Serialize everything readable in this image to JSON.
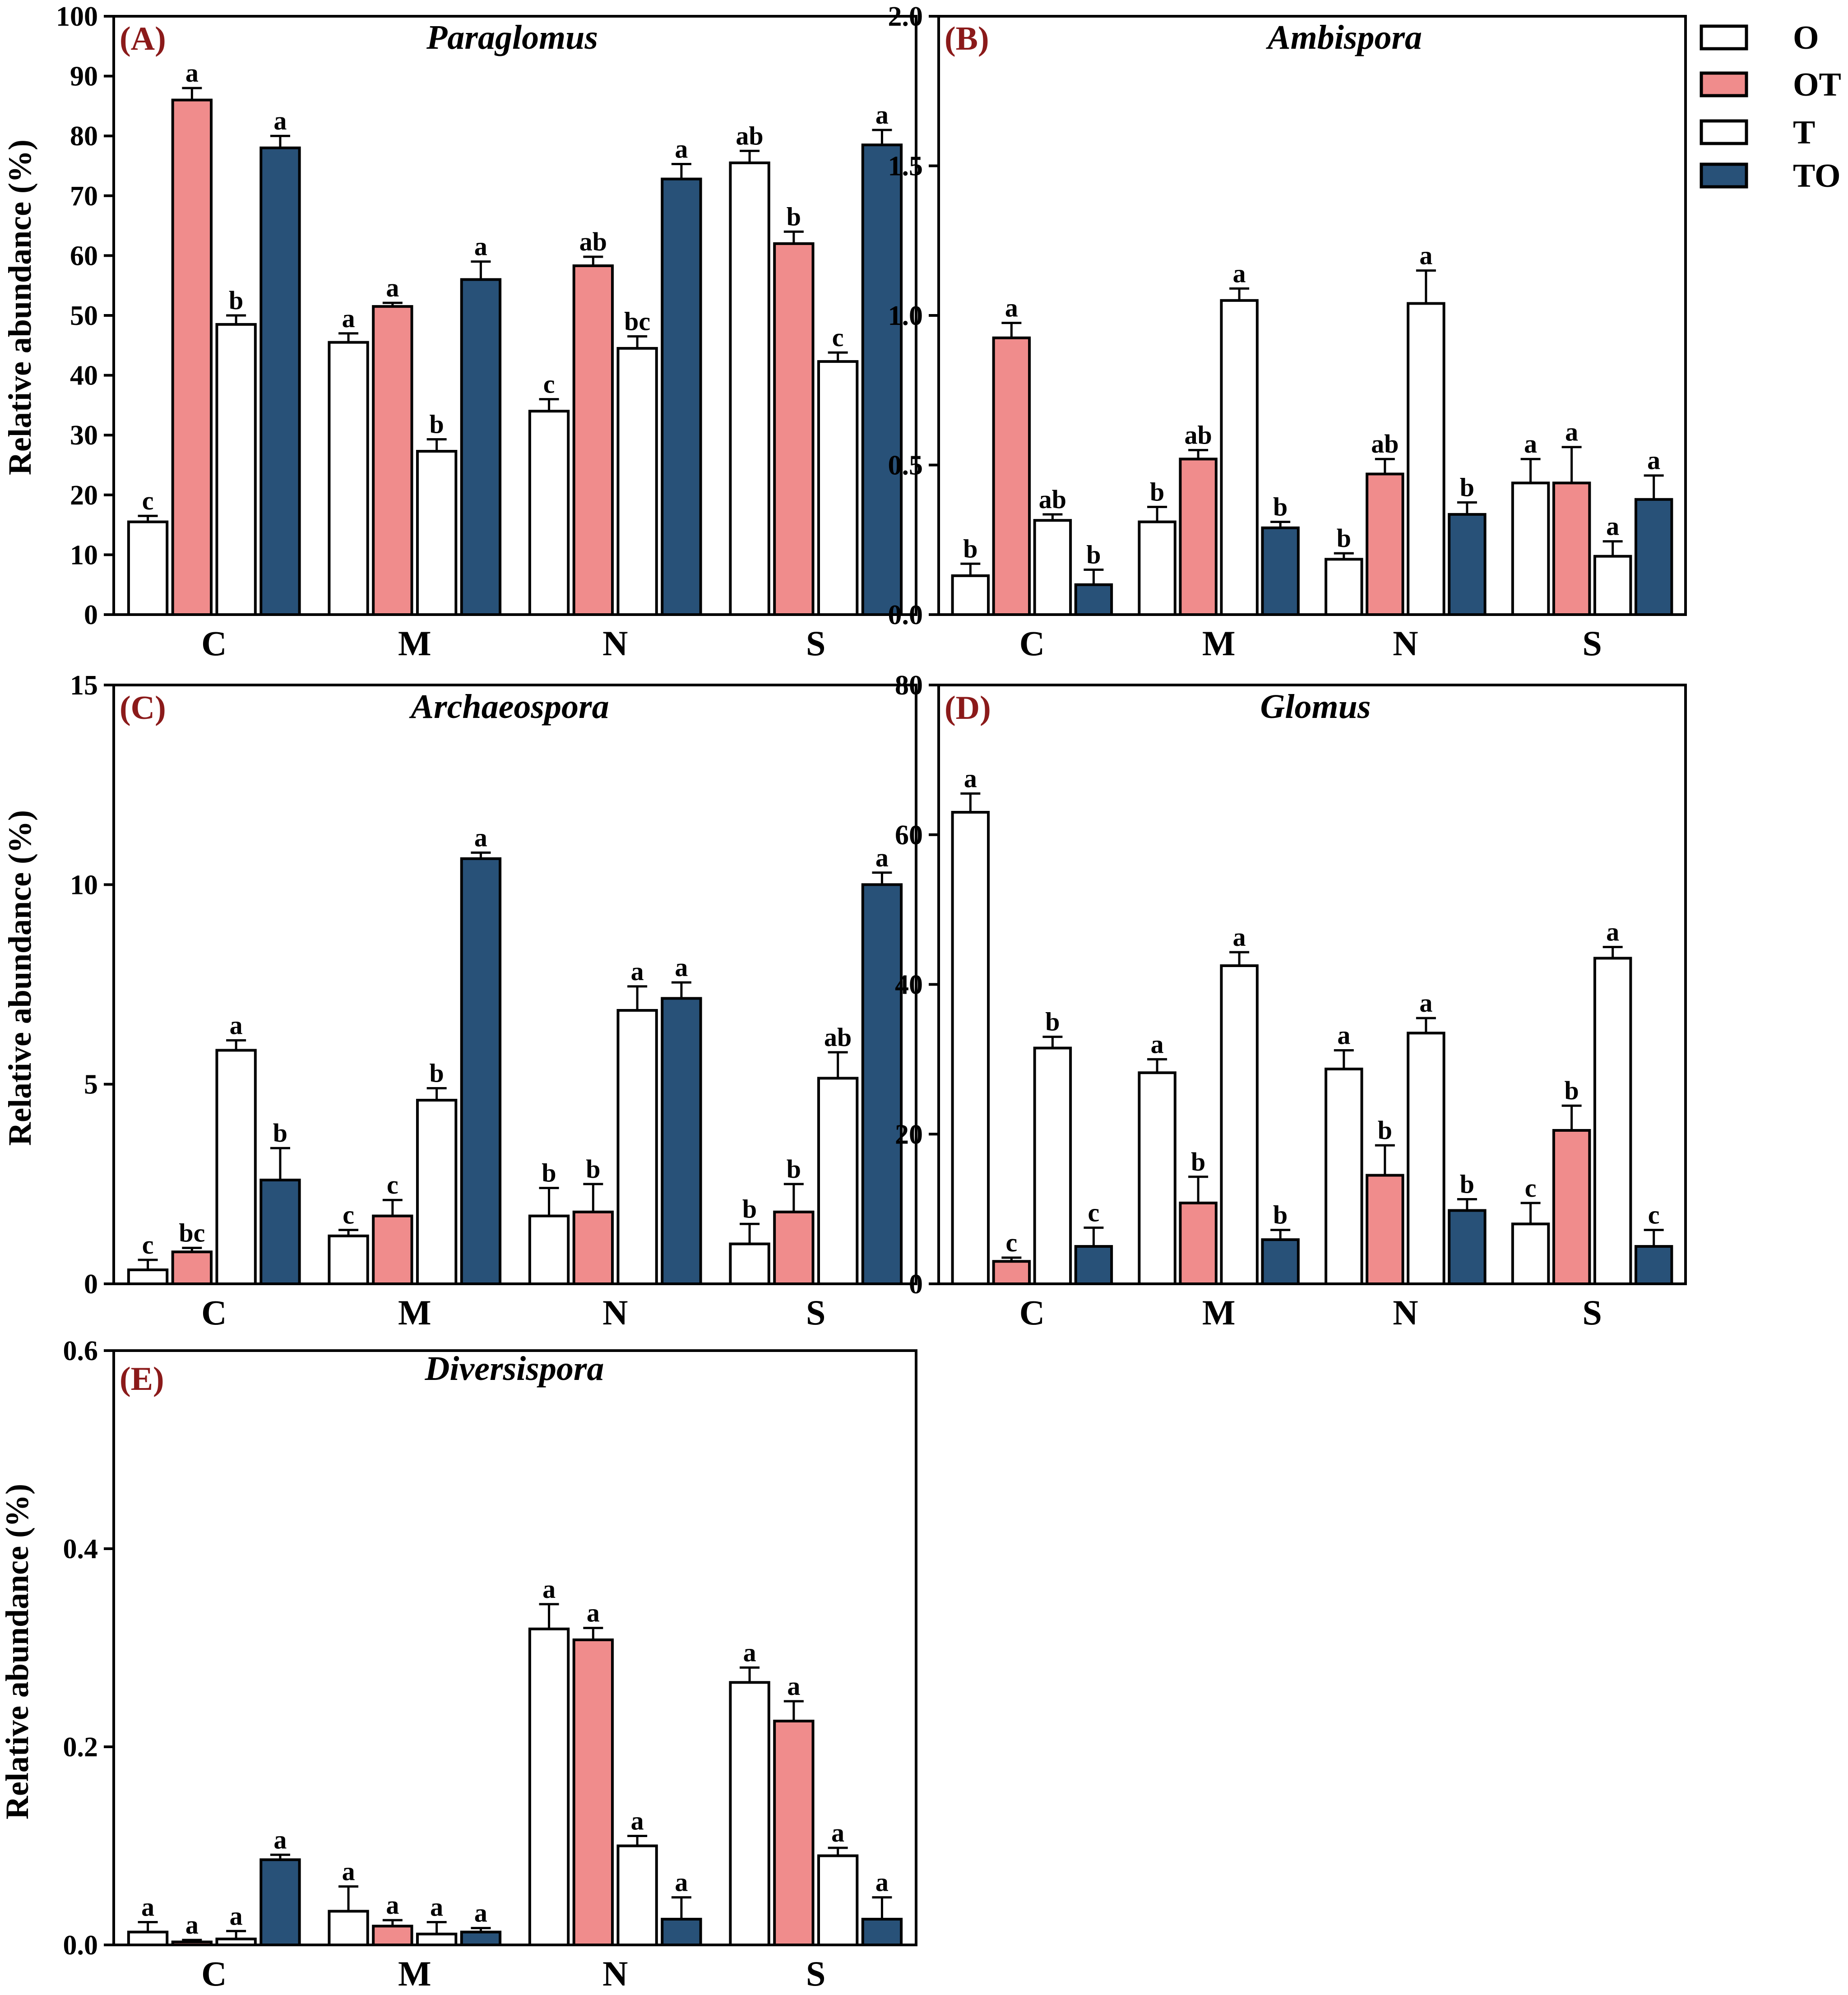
{
  "legend": {
    "entries": [
      {
        "name": "O",
        "color": "#ffffff"
      },
      {
        "name": "OT",
        "color": "#f08c8c"
      },
      {
        "name": "T",
        "color": "#ffffff"
      },
      {
        "name": "TO",
        "color": "#285178"
      }
    ]
  },
  "chart_data": [
    {
      "type": "bar",
      "panel_label": "(A)",
      "title": "Paraglomus",
      "ylabel": "Relative abundance (%)",
      "ylim": [
        0,
        100
      ],
      "yticks": [
        0,
        10,
        20,
        30,
        40,
        50,
        60,
        70,
        80,
        90,
        100
      ],
      "ytick_labels": [
        "0",
        "10",
        "20",
        "30",
        "40",
        "50",
        "60",
        "70",
        "80",
        "90",
        "100"
      ],
      "categories": [
        "C",
        "M",
        "N",
        "S"
      ],
      "series": [
        {
          "name": "O",
          "values": [
            15.5,
            45.5,
            34,
            75.5
          ],
          "errors": [
            1,
            1.5,
            2,
            2
          ],
          "letters": [
            "c",
            "a",
            "c",
            "ab"
          ]
        },
        {
          "name": "OT",
          "values": [
            86,
            51.5,
            58.3,
            62
          ],
          "errors": [
            2,
            0.6,
            1.5,
            2
          ],
          "letters": [
            "a",
            "a",
            "ab",
            "b"
          ]
        },
        {
          "name": "T",
          "values": [
            48.5,
            27.3,
            44.5,
            42.3
          ],
          "errors": [
            1.5,
            2,
            2,
            1.5
          ],
          "letters": [
            "b",
            "b",
            "bc",
            "c"
          ]
        },
        {
          "name": "TO",
          "values": [
            78,
            56,
            72.8,
            78.5
          ],
          "errors": [
            2,
            3,
            2.5,
            2.5
          ],
          "letters": [
            "a",
            "a",
            "a",
            "a"
          ]
        }
      ]
    },
    {
      "type": "bar",
      "panel_label": "(B)",
      "title": "Ambispora",
      "ylabel": "",
      "ylim": [
        0,
        2.0
      ],
      "yticks": [
        0,
        0.5,
        1.0,
        1.5,
        2.0
      ],
      "ytick_labels": [
        "0.0",
        "0.5",
        "1.0",
        "1.5",
        "2.0"
      ],
      "categories": [
        "C",
        "M",
        "N",
        "S"
      ],
      "series": [
        {
          "name": "O",
          "values": [
            0.13,
            0.31,
            0.185,
            0.44
          ],
          "errors": [
            0.04,
            0.05,
            0.02,
            0.08
          ],
          "letters": [
            "b",
            "b",
            "b",
            "a"
          ]
        },
        {
          "name": "OT",
          "values": [
            0.925,
            0.52,
            0.47,
            0.44
          ],
          "errors": [
            0.05,
            0.03,
            0.05,
            0.12
          ],
          "letters": [
            "a",
            "ab",
            "ab",
            "a"
          ]
        },
        {
          "name": "T",
          "values": [
            0.315,
            1.05,
            1.04,
            0.195
          ],
          "errors": [
            0.02,
            0.04,
            0.11,
            0.05
          ],
          "letters": [
            "ab",
            "a",
            "a",
            "a"
          ]
        },
        {
          "name": "TO",
          "values": [
            0.1,
            0.29,
            0.335,
            0.385
          ],
          "errors": [
            0.05,
            0.02,
            0.04,
            0.08
          ],
          "letters": [
            "b",
            "b",
            "b",
            "a"
          ]
        }
      ]
    },
    {
      "type": "bar",
      "panel_label": "(C)",
      "title": "Archaeospora",
      "ylabel": "Relative abundance (%)",
      "ylim": [
        0,
        15
      ],
      "yticks": [
        0,
        5,
        10,
        15
      ],
      "ytick_labels": [
        "0",
        "5",
        "10",
        "15"
      ],
      "categories": [
        "C",
        "M",
        "N",
        "S"
      ],
      "series": [
        {
          "name": "O",
          "values": [
            0.35,
            1.2,
            1.7,
            1.0
          ],
          "errors": [
            0.25,
            0.15,
            0.7,
            0.5
          ],
          "letters": [
            "c",
            "c",
            "b",
            "b"
          ]
        },
        {
          "name": "OT",
          "values": [
            0.8,
            1.7,
            1.8,
            1.8
          ],
          "errors": [
            0.1,
            0.4,
            0.7,
            0.7
          ],
          "letters": [
            "bc",
            "c",
            "b",
            "b"
          ]
        },
        {
          "name": "T",
          "values": [
            5.85,
            4.6,
            6.85,
            5.15
          ],
          "errors": [
            0.25,
            0.3,
            0.6,
            0.65
          ],
          "letters": [
            "a",
            "b",
            "a",
            "ab"
          ]
        },
        {
          "name": "TO",
          "values": [
            2.6,
            10.65,
            7.15,
            10.0
          ],
          "errors": [
            0.8,
            0.15,
            0.4,
            0.3
          ],
          "letters": [
            "b",
            "a",
            "a",
            "a"
          ]
        }
      ]
    },
    {
      "type": "bar",
      "panel_label": "(D)",
      "title": "Glomus",
      "ylabel": "",
      "ylim": [
        0,
        80
      ],
      "yticks": [
        0,
        20,
        40,
        60,
        80
      ],
      "ytick_labels": [
        "0",
        "20",
        "40",
        "60",
        "80"
      ],
      "categories": [
        "C",
        "M",
        "N",
        "S"
      ],
      "series": [
        {
          "name": "O",
          "values": [
            63,
            28.2,
            28.7,
            8.0
          ],
          "errors": [
            2.5,
            1.8,
            2.5,
            2.8
          ],
          "letters": [
            "a",
            "a",
            "a",
            "c"
          ]
        },
        {
          "name": "OT",
          "values": [
            3.0,
            10.8,
            14.5,
            20.5
          ],
          "errors": [
            0.5,
            3.5,
            4,
            3.3
          ],
          "letters": [
            "c",
            "b",
            "b",
            "b"
          ]
        },
        {
          "name": "T",
          "values": [
            31.5,
            42.5,
            33.5,
            43.5
          ],
          "errors": [
            1.5,
            1.8,
            2,
            1.5
          ],
          "letters": [
            "b",
            "a",
            "a",
            "a"
          ]
        },
        {
          "name": "TO",
          "values": [
            5.0,
            5.9,
            9.8,
            5.0
          ],
          "errors": [
            2.5,
            1.3,
            1.5,
            2.2
          ],
          "letters": [
            "c",
            "b",
            "b",
            "c"
          ]
        }
      ]
    },
    {
      "type": "bar",
      "panel_label": "(E)",
      "title": "Diversispora",
      "ylabel": "Relative abundance (%)",
      "ylim": [
        0,
        0.6
      ],
      "yticks": [
        0,
        0.2,
        0.4,
        0.6
      ],
      "ytick_labels": [
        "0.0",
        "0.2",
        "0.4",
        "0.6"
      ],
      "categories": [
        "C",
        "M",
        "N",
        "S"
      ],
      "series": [
        {
          "name": "O",
          "values": [
            0.013,
            0.034,
            0.319,
            0.265
          ],
          "errors": [
            0.01,
            0.025,
            0.025,
            0.015
          ],
          "letters": [
            "a",
            "a",
            "a",
            "a"
          ]
        },
        {
          "name": "OT",
          "values": [
            0.003,
            0.019,
            0.308,
            0.226
          ],
          "errors": [
            0.002,
            0.006,
            0.012,
            0.02
          ],
          "letters": [
            "a",
            "a",
            "a",
            "a"
          ]
        },
        {
          "name": "T",
          "values": [
            0.006,
            0.011,
            0.1,
            0.09
          ],
          "errors": [
            0.008,
            0.012,
            0.01,
            0.008
          ],
          "letters": [
            "a",
            "a",
            "a",
            "a"
          ]
        },
        {
          "name": "TO",
          "values": [
            0.086,
            0.013,
            0.026,
            0.026
          ],
          "errors": [
            0.005,
            0.004,
            0.022,
            0.022
          ],
          "letters": [
            "a",
            "a",
            "a",
            "a"
          ]
        }
      ]
    }
  ]
}
